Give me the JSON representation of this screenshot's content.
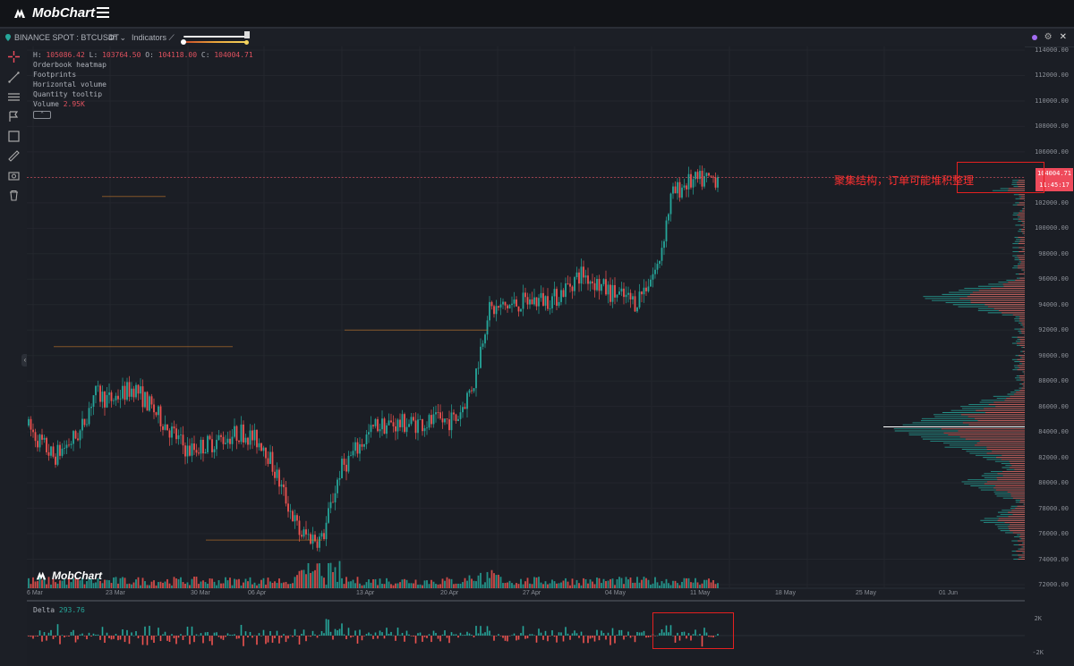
{
  "app": {
    "brand": "MobChart"
  },
  "toolbar": {
    "exchange": "BINANCE SPOT : BTCUSDT",
    "interval": "4h",
    "indicators_label": "Indicators"
  },
  "legend": {
    "ohlc_prefix_h": "H: ",
    "ohlc_h": "105086.42",
    "ohlc_prefix_l": " L: ",
    "ohlc_l": "103764.50",
    "ohlc_prefix_o": " O: ",
    "ohlc_o": "104118.00",
    "ohlc_prefix_c": " C: ",
    "ohlc_c": "104004.71",
    "items": [
      "Orderbook heatmap",
      "Footprints",
      "Horizontal volume",
      "Quantity tooltip"
    ],
    "volume_label": "Volume ",
    "volume_value": "2.95K"
  },
  "price_tag": {
    "price": "104004.71",
    "time": "11:45:17"
  },
  "annotation": {
    "text": "聚集结构，订单可能堆积整理"
  },
  "watermark": "MobChart",
  "delta": {
    "label": "Delta ",
    "value": "293.76",
    "ticks": [
      "2K",
      "-2K"
    ]
  },
  "x_axis": [
    "6 Mar",
    "23 Mar",
    "30 Mar",
    "06 Apr",
    "13 Apr",
    "20 Apr",
    "27 Apr",
    "04 May",
    "11 May",
    "18 May",
    "25 May",
    "01 Jun"
  ],
  "y_axis": [
    "114000.00",
    "112000.00",
    "110000.00",
    "108000.00",
    "106000.00",
    "104000.00",
    "102000.00",
    "100000.00",
    "98000.00",
    "96000.00",
    "94000.00",
    "92000.00",
    "90000.00",
    "88000.00",
    "86000.00",
    "84000.00",
    "82000.00",
    "80000.00",
    "78000.00",
    "76000.00",
    "74000.00",
    "72000.00"
  ],
  "chart_data": {
    "type": "candlestick",
    "symbol": "BTCUSDT",
    "interval": "4h",
    "ylim": [
      71500,
      114500
    ],
    "x": [
      "6 Mar",
      "23 Mar",
      "30 Mar",
      "06 Apr",
      "13 Apr",
      "20 Apr",
      "27 Apr",
      "04 May",
      "11 May"
    ],
    "close_path": [
      [
        "6 Mar",
        84500
      ],
      [
        "10 Mar",
        82000
      ],
      [
        "15 Mar",
        84000
      ],
      [
        "19 Mar",
        87000
      ],
      [
        "23 Mar",
        86500
      ],
      [
        "26 Mar",
        87500
      ],
      [
        "30 Mar",
        82500
      ],
      [
        "03 Apr",
        84000
      ],
      [
        "06 Apr",
        83000
      ],
      [
        "07 Apr",
        76000
      ],
      [
        "09 Apr",
        75500
      ],
      [
        "10 Apr",
        81000
      ],
      [
        "13 Apr",
        84500
      ],
      [
        "17 Apr",
        84800
      ],
      [
        "20 Apr",
        85000
      ],
      [
        "22 Apr",
        88000
      ],
      [
        "24 Apr",
        93500
      ],
      [
        "27 Apr",
        94200
      ],
      [
        "30 Apr",
        94500
      ],
      [
        "02 May",
        96500
      ],
      [
        "04 May",
        95000
      ],
      [
        "06 May",
        94200
      ],
      [
        "08 May",
        97000
      ],
      [
        "09 May",
        102500
      ],
      [
        "11 May",
        103500
      ],
      [
        "12 May",
        104004.71
      ]
    ],
    "last_price": 104004.71
  },
  "colors": {
    "up": "#26a69a",
    "down": "#ef5350",
    "annotation": "#e52020",
    "background": "#1b1e25"
  }
}
